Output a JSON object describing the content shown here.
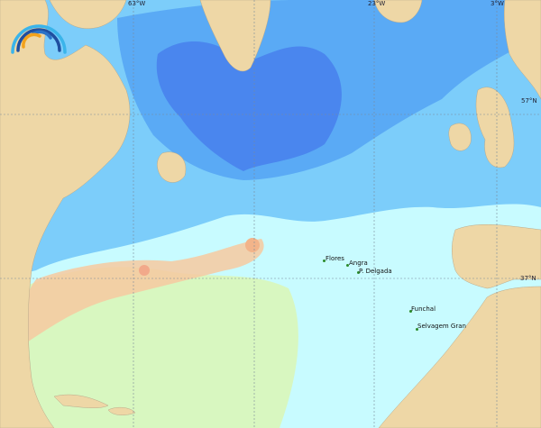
{
  "map": {
    "grid_labels": {
      "lon": [
        "63°W",
        "23°W",
        "3°W"
      ],
      "lat": [
        "57°N",
        "37°N"
      ]
    },
    "places": [
      {
        "name": "Flores"
      },
      {
        "name": "Angra"
      },
      {
        "name": "P. Delgada"
      },
      {
        "name": "Funchal"
      },
      {
        "name": "Selvagem Gran"
      }
    ],
    "colors": {
      "land": "#eed7a6",
      "deep_blue": "#4a86ee",
      "mid_blue": "#5aaaf5",
      "light_blue": "#7ccdfa",
      "pale_cyan": "#c8fbff",
      "pale_green": "#d8f7c0",
      "warm_orange": "#f7c9a0",
      "logo_blue": "#2a8fd8",
      "logo_orange": "#f3a21b"
    }
  },
  "logo": {
    "icon": "wave-arcs-logo"
  }
}
